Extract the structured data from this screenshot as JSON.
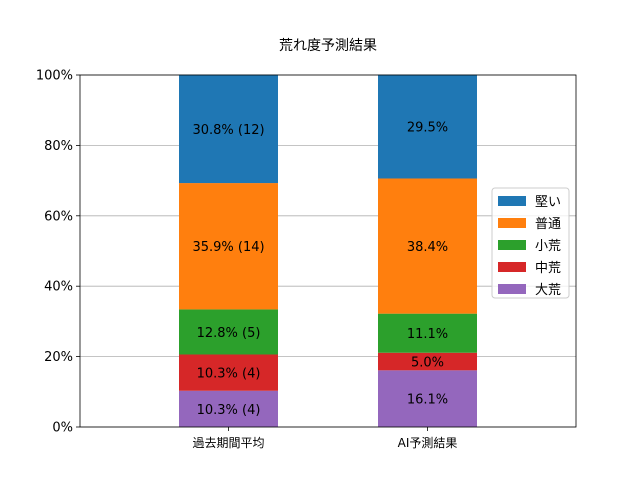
{
  "chart_data": {
    "type": "bar",
    "stacked": true,
    "title": "荒れ度予測結果",
    "xlabel": "",
    "ylabel": "",
    "ylim": [
      0,
      100
    ],
    "yticks": [
      0,
      20,
      40,
      60,
      80,
      100
    ],
    "ytick_labels": [
      "0%",
      "20%",
      "40%",
      "60%",
      "80%",
      "100%"
    ],
    "grid": "y",
    "legend_position": "center-right",
    "categories": [
      "過去期間平均",
      "AI予測結果"
    ],
    "series": [
      {
        "name": "大荒",
        "color": "#9467bd",
        "values": [
          10.3,
          16.1
        ],
        "labels": [
          "10.3% (4)",
          "16.1%"
        ]
      },
      {
        "name": "中荒",
        "color": "#d62728",
        "values": [
          10.3,
          5.0
        ],
        "labels": [
          "10.3% (4)",
          "5.0%"
        ]
      },
      {
        "name": "小荒",
        "color": "#2ca02c",
        "values": [
          12.8,
          11.1
        ],
        "labels": [
          "12.8% (5)",
          "11.1%"
        ]
      },
      {
        "name": "普通",
        "color": "#ff7f0e",
        "values": [
          35.9,
          38.4
        ],
        "labels": [
          "35.9% (14)",
          "38.4%"
        ]
      },
      {
        "name": "堅い",
        "color": "#1f77b4",
        "values": [
          30.8,
          29.5
        ],
        "labels": [
          "30.8% (12)",
          "29.5%"
        ]
      }
    ],
    "legend_order": [
      "堅い",
      "普通",
      "小荒",
      "中荒",
      "大荒"
    ]
  }
}
